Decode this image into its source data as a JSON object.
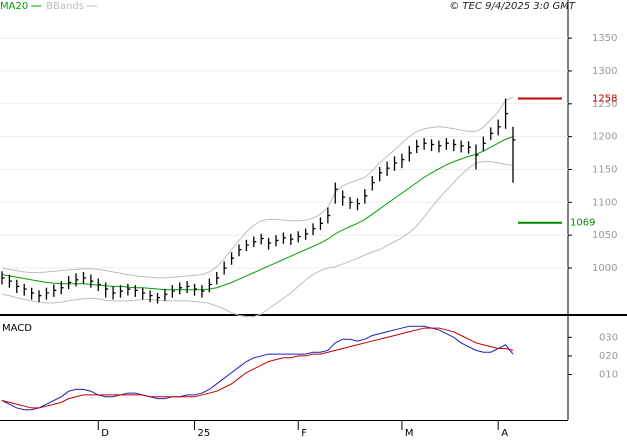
{
  "chart_data": [
    {
      "type": "ohlc",
      "source": "© TEC 9/4/2025 3:0 GMT",
      "color": "#000000",
      "high": [
        995,
        990,
        982,
        976,
        970,
        966,
        970,
        975,
        980,
        988,
        992,
        994,
        990,
        984,
        978,
        972,
        974,
        976,
        974,
        970,
        966,
        962,
        968,
        974,
        978,
        980,
        976,
        974,
        984,
        994,
        1010,
        1024,
        1036,
        1043,
        1048,
        1052,
        1046,
        1050,
        1054,
        1052,
        1056,
        1060,
        1068,
        1077,
        1092,
        1130,
        1118,
        1108,
        1106,
        1120,
        1140,
        1154,
        1162,
        1170,
        1174,
        1186,
        1195,
        1198,
        1196,
        1194,
        1198,
        1196,
        1194,
        1193,
        1188,
        1200,
        1214,
        1226,
        1258,
        1215
      ],
      "low": [
        975,
        970,
        962,
        958,
        952,
        948,
        952,
        956,
        960,
        968,
        972,
        976,
        970,
        965,
        955,
        952,
        955,
        958,
        956,
        952,
        948,
        946,
        950,
        955,
        960,
        962,
        958,
        955,
        963,
        975,
        990,
        1005,
        1018,
        1026,
        1032,
        1036,
        1028,
        1033,
        1037,
        1035,
        1039,
        1043,
        1050,
        1058,
        1068,
        1098,
        1095,
        1090,
        1088,
        1098,
        1118,
        1132,
        1140,
        1148,
        1152,
        1162,
        1175,
        1180,
        1178,
        1176,
        1180,
        1178,
        1176,
        1174,
        1150,
        1178,
        1195,
        1202,
        1212,
        1130
      ],
      "close": [
        985,
        980,
        972,
        968,
        962,
        958,
        962,
        966,
        970,
        978,
        982,
        985,
        980,
        975,
        968,
        962,
        965,
        968,
        966,
        962,
        958,
        955,
        960,
        965,
        970,
        972,
        968,
        965,
        975,
        985,
        1000,
        1015,
        1028,
        1035,
        1040,
        1045,
        1038,
        1042,
        1046,
        1044,
        1048,
        1052,
        1060,
        1068,
        1080,
        1120,
        1108,
        1100,
        1098,
        1110,
        1130,
        1145,
        1152,
        1160,
        1165,
        1175,
        1185,
        1190,
        1188,
        1186,
        1190,
        1188,
        1186,
        1184,
        1172,
        1190,
        1205,
        1215,
        1235,
        1195
      ],
      "series": [
        {
          "name": "MA20",
          "color": "#00a000",
          "values": [
            990,
            988,
            986,
            984,
            982,
            980,
            978,
            977,
            976,
            976,
            976,
            976,
            975,
            974,
            973,
            972,
            972,
            971,
            970,
            970,
            969,
            968,
            967,
            967,
            967,
            967,
            967,
            967,
            968,
            970,
            974,
            978,
            983,
            988,
            993,
            998,
            1003,
            1008,
            1013,
            1018,
            1023,
            1028,
            1033,
            1038,
            1044,
            1052,
            1058,
            1063,
            1068,
            1074,
            1082,
            1090,
            1098,
            1106,
            1114,
            1122,
            1130,
            1138,
            1145,
            1151,
            1157,
            1162,
            1166,
            1170,
            1173,
            1178,
            1184,
            1190,
            1196,
            1200
          ]
        },
        {
          "name": "BBands",
          "color": "#bdbdbd",
          "upper": [
            1000,
            998,
            996,
            994,
            993,
            993,
            994,
            995,
            996,
            997,
            998,
            999,
            999,
            998,
            996,
            994,
            992,
            990,
            988,
            987,
            986,
            985,
            985,
            986,
            987,
            988,
            989,
            990,
            994,
            1002,
            1014,
            1028,
            1042,
            1055,
            1065,
            1072,
            1074,
            1074,
            1073,
            1072,
            1072,
            1073,
            1076,
            1082,
            1092,
            1115,
            1125,
            1130,
            1134,
            1138,
            1148,
            1160,
            1170,
            1180,
            1190,
            1200,
            1208,
            1212,
            1214,
            1215,
            1214,
            1212,
            1210,
            1208,
            1208,
            1214,
            1226,
            1238,
            1255,
            1260
          ],
          "lower": [
            960,
            958,
            955,
            952,
            950,
            948,
            947,
            947,
            948,
            950,
            952,
            953,
            954,
            953,
            951,
            950,
            950,
            950,
            951,
            952,
            952,
            951,
            950,
            950,
            950,
            950,
            949,
            948,
            946,
            942,
            938,
            932,
            928,
            926,
            926,
            930,
            938,
            946,
            954,
            962,
            972,
            982,
            990,
            996,
            1000,
            1002,
            1006,
            1010,
            1015,
            1020,
            1024,
            1028,
            1034,
            1040,
            1046,
            1054,
            1064,
            1078,
            1092,
            1106,
            1118,
            1130,
            1142,
            1152,
            1160,
            1162,
            1162,
            1160,
            1158,
            1156
          ]
        }
      ],
      "annotations": [
        {
          "value": 1258,
          "color": "#c00000"
        },
        {
          "value": 1069,
          "color": "#008c00"
        }
      ],
      "ylim": [
        928.5,
        1408
      ],
      "yticks": [
        1000,
        1050,
        1100,
        1150,
        1200,
        1250,
        1300,
        1350
      ],
      "grid": true
    },
    {
      "type": "line",
      "title": "MACD",
      "categories": [
        null,
        null,
        null,
        null,
        null,
        null,
        null,
        null,
        null,
        null,
        null,
        null,
        null,
        "D",
        null,
        null,
        null,
        null,
        null,
        null,
        null,
        null,
        null,
        null,
        null,
        null,
        "25",
        null,
        null,
        null,
        null,
        null,
        null,
        null,
        null,
        null,
        null,
        null,
        null,
        null,
        "F",
        null,
        null,
        null,
        null,
        null,
        null,
        null,
        null,
        null,
        null,
        null,
        null,
        null,
        "M",
        null,
        null,
        null,
        null,
        null,
        null,
        null,
        null,
        null,
        null,
        null,
        null,
        "A",
        null,
        null
      ],
      "series": [
        {
          "color": "#1f1fbf",
          "values": [
            -4,
            -6,
            -8,
            -9,
            -9,
            -8,
            -6,
            -4,
            -2,
            1,
            2,
            2,
            1,
            -1,
            -2,
            -2,
            -1,
            0,
            0,
            -1,
            -2,
            -3,
            -3,
            -2,
            -2,
            -1,
            -1,
            0,
            2,
            5,
            8,
            11,
            14,
            17,
            19,
            20,
            21,
            21,
            21,
            21,
            21,
            21,
            22,
            22,
            23,
            27,
            29,
            29,
            28,
            29,
            31,
            32,
            33,
            34,
            35,
            36,
            36,
            36,
            35,
            34,
            32,
            30,
            27,
            25,
            23,
            22,
            22,
            24,
            26,
            21
          ]
        },
        {
          "color": "#c00000",
          "values": [
            -4,
            -5,
            -6,
            -7,
            -8,
            -8,
            -7,
            -6,
            -5,
            -3,
            -2,
            -1,
            -1,
            -1,
            -1,
            -1,
            -1,
            -1,
            -1,
            -1,
            -2,
            -2,
            -2,
            -2,
            -2,
            -2,
            -2,
            -1,
            0,
            1,
            3,
            5,
            8,
            11,
            13,
            15,
            17,
            18,
            19,
            19,
            20,
            20,
            21,
            21,
            22,
            23,
            24,
            25,
            26,
            27,
            28,
            29,
            30,
            31,
            32,
            33,
            34,
            35,
            35,
            35,
            34,
            33,
            31,
            29,
            27,
            26,
            25,
            24,
            24,
            23
          ]
        }
      ],
      "ylim": [
        -14.5,
        41.5
      ],
      "yticks": [
        {
          "value": 10,
          "label": "010"
        },
        {
          "value": 20,
          "label": "020"
        },
        {
          "value": 30,
          "label": "030"
        }
      ]
    }
  ]
}
